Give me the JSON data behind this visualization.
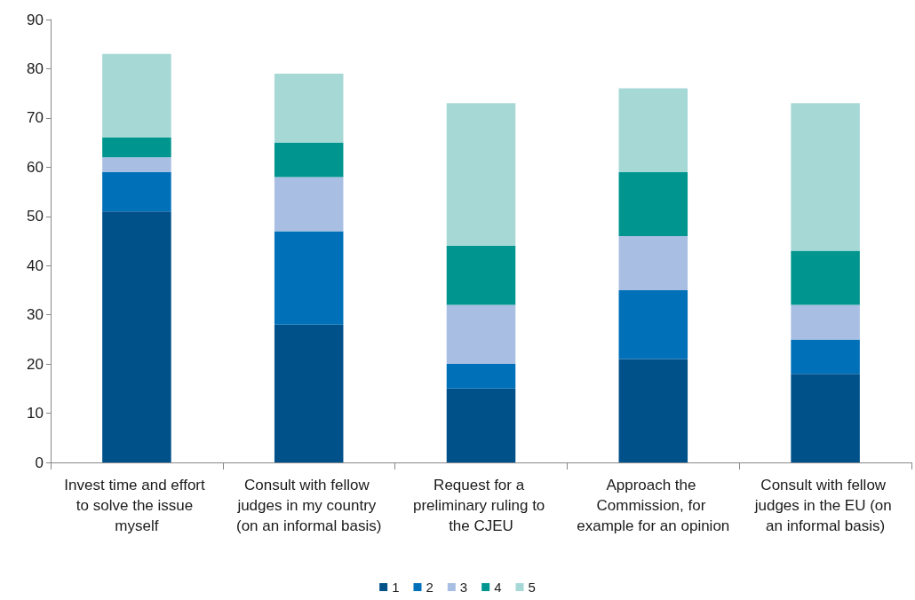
{
  "chart_data": {
    "type": "bar",
    "stacked": true,
    "categories": [
      "Invest time and effort to solve the issue myself",
      "Consult with fellow judges in my country (on an informal basis)",
      "Request for a preliminary ruling to the CJEU",
      "Approach the Commission, for example for an opinion",
      "Consult with fellow judges in the EU (on an informal basis)"
    ],
    "series": [
      {
        "name": "1",
        "color": "#00508a",
        "values": [
          51,
          28,
          15,
          21,
          18
        ]
      },
      {
        "name": "2",
        "color": "#0070b8",
        "values": [
          8,
          19,
          5,
          14,
          7
        ]
      },
      {
        "name": "3",
        "color": "#a8bfe3",
        "values": [
          3,
          11,
          12,
          11,
          7
        ]
      },
      {
        "name": "4",
        "color": "#00968f",
        "values": [
          4,
          7,
          12,
          13,
          11
        ]
      },
      {
        "name": "5",
        "color": "#a6d8d6",
        "values": [
          17,
          14,
          29,
          17,
          30
        ]
      }
    ],
    "ylim": [
      0,
      90
    ],
    "yticks": [
      0,
      10,
      20,
      30,
      40,
      50,
      60,
      70,
      80,
      90
    ],
    "grid": false,
    "legend": "bottom"
  }
}
